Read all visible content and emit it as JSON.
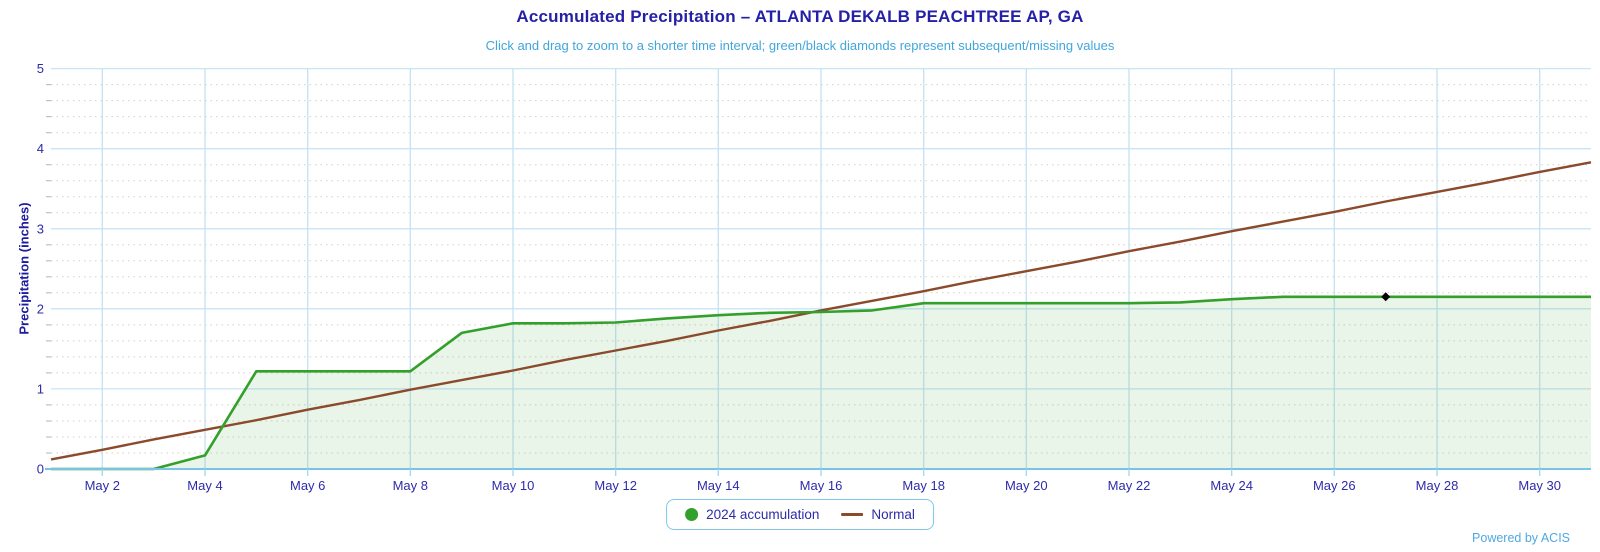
{
  "header": {
    "title": "Accumulated Precipitation – ATLANTA DEKALB PEACHTREE AP, GA",
    "subtitle": "Click and drag to zoom to a shorter time interval; green/black diamonds represent subsequent/missing values"
  },
  "footer": {
    "powered_by": "Powered by ACIS"
  },
  "legend": {
    "items": [
      {
        "label": "2024 accumulation",
        "symbol": "circle",
        "color": "#33a02c"
      },
      {
        "label": "Normal",
        "symbol": "line",
        "color": "#8a4a2b"
      }
    ]
  },
  "chart_data": {
    "type": "area",
    "title": "Accumulated Precipitation – ATLANTA DEKALB PEACHTREE AP, GA",
    "subtitle": "Click and drag to zoom to a shorter time interval; green/black diamonds represent subsequent/missing values",
    "xlabel": "",
    "ylabel": "Precipitation (inches)",
    "ylim": [
      0,
      5
    ],
    "y_major_step": 1,
    "y_minor_step": 0.2,
    "y_tick_labels": [
      "0",
      "1",
      "2",
      "3",
      "4",
      "5"
    ],
    "x_unit": "day of May 2024",
    "x_range_days": [
      1,
      31
    ],
    "x_tick_days": [
      2,
      4,
      6,
      8,
      10,
      12,
      14,
      16,
      18,
      20,
      22,
      24,
      26,
      28,
      30
    ],
    "x_tick_labels": [
      "May 2",
      "May 4",
      "May 6",
      "May 8",
      "May 10",
      "May 12",
      "May 14",
      "May 16",
      "May 18",
      "May 20",
      "May 22",
      "May 24",
      "May 26",
      "May 28",
      "May 30"
    ],
    "grid": {
      "major": true,
      "minor_dotted": true
    },
    "legend_position": "bottom-center",
    "series": [
      {
        "name": "2024 accumulation",
        "type": "area",
        "color": "#33a02c",
        "fill_opacity": 0.1,
        "values": [
          0.0,
          0.0,
          0.0,
          0.17,
          1.22,
          1.22,
          1.22,
          1.22,
          1.7,
          1.82,
          1.82,
          1.83,
          1.88,
          1.92,
          1.95,
          1.96,
          1.98,
          2.07,
          2.07,
          2.07,
          2.07,
          2.07,
          2.08,
          2.12,
          2.15,
          2.15,
          2.15,
          2.15,
          2.15,
          2.15,
          2.15
        ]
      },
      {
        "name": "Normal",
        "type": "line",
        "color": "#8a4a2b",
        "fill_opacity": 0,
        "values": [
          0.12,
          0.24,
          0.37,
          0.49,
          0.61,
          0.74,
          0.86,
          0.99,
          1.11,
          1.23,
          1.36,
          1.48,
          1.6,
          1.73,
          1.85,
          1.98,
          2.1,
          2.22,
          2.35,
          2.47,
          2.59,
          2.72,
          2.84,
          2.97,
          3.09,
          3.21,
          3.34,
          3.46,
          3.58,
          3.71,
          3.83
        ]
      }
    ],
    "markers": [
      {
        "series": "2024 accumulation",
        "day": 27,
        "value": 2.15,
        "shape": "diamond",
        "color": "#000000",
        "meaning": "missing value"
      }
    ],
    "colors": {
      "major_grid_h": "#c9e4f5",
      "major_grid_v": "#c4e1f3",
      "minor_grid": "#d6d0c6",
      "axis_line": "#7ac3e8",
      "x_tick_mark": "#9fd5ef",
      "y_tick_mark": "#c0c0c0",
      "tick_label": "#2e2ba8"
    }
  }
}
